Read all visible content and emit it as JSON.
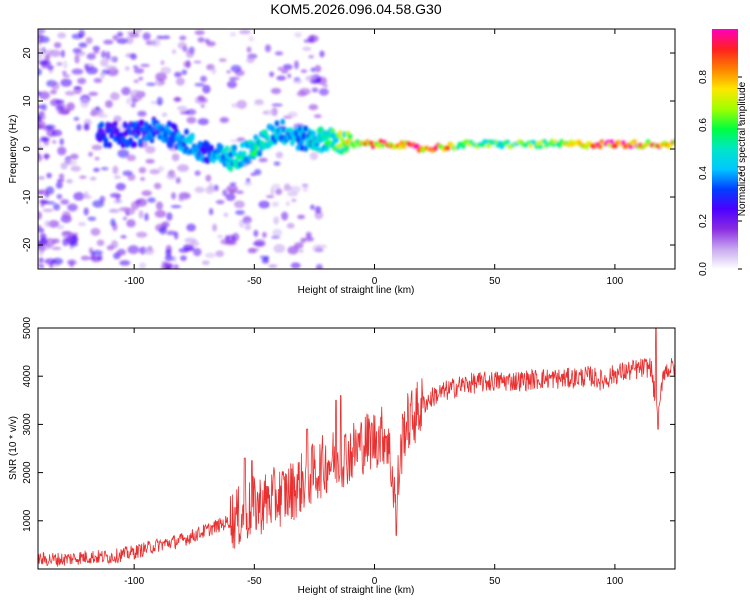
{
  "page_title": "KOM5.2026.096.04.58.G30",
  "chart_data": [
    {
      "type": "heatmap",
      "title": "KOM5.2026.096.04.58.G30",
      "xlabel": "Height of straight line (km)",
      "ylabel": "Frequency (Hz)",
      "xlim": [
        -140,
        125
      ],
      "ylim": [
        -25,
        25
      ],
      "x_ticks": [
        -100,
        -50,
        0,
        50,
        100
      ],
      "y_ticks": [
        -20,
        -10,
        0,
        10,
        20
      ],
      "x_tick_labels": [
        "-100",
        "-50",
        "0",
        "50",
        "100"
      ],
      "y_tick_labels": [
        "-20",
        "-10",
        "0",
        "10",
        "20"
      ],
      "colorbar": {
        "label": "Normalized spectral amplitude",
        "range": [
          0,
          1
        ],
        "ticks": [
          0.0,
          0.2,
          0.4,
          0.6,
          0.8
        ],
        "tick_labels": [
          "0.0",
          "0.2",
          "0.4",
          "0.6",
          "0.8"
        ],
        "colormap": [
          "#ffffff",
          "#c8a8f0",
          "#8a2be2",
          "#4b00ff",
          "#0040ff",
          "#00c8ff",
          "#00e6c8",
          "#00ff40",
          "#a0ff00",
          "#ffe600",
          "#ff8000",
          "#ff2020",
          "#ff00c0"
        ]
      },
      "ridge": {
        "description_points_x": [
          -100,
          -90,
          -80,
          -70,
          -60,
          -50,
          -40,
          -30,
          -20,
          -10,
          0,
          10,
          20,
          40,
          60,
          80,
          100,
          120
        ],
        "frequency_hz": [
          3,
          4,
          2,
          -1,
          -2,
          0,
          4,
          2,
          2,
          1,
          1,
          1,
          0,
          1,
          1,
          1,
          1,
          1
        ],
        "amplitude": [
          0.3,
          0.35,
          0.4,
          0.35,
          0.45,
          0.5,
          0.4,
          0.4,
          0.5,
          0.7,
          0.8,
          0.85,
          0.9,
          0.6,
          0.6,
          0.7,
          0.9,
          0.8
        ]
      }
    },
    {
      "type": "line",
      "xlabel": "Height of straight line (km)",
      "ylabel": "SNR (10 * v/v)",
      "xlim": [
        -140,
        125
      ],
      "ylim": [
        0,
        5000
      ],
      "x_ticks": [
        -100,
        -50,
        0,
        50,
        100
      ],
      "y_ticks": [
        1000,
        2000,
        3000,
        4000,
        5000
      ],
      "x_tick_labels": [
        "-100",
        "-50",
        "0",
        "50",
        "100"
      ],
      "y_tick_labels": [
        "1000",
        "2000",
        "3000",
        "4000",
        "5000"
      ],
      "color": "#e83030",
      "x": [
        -140,
        -130,
        -120,
        -110,
        -100,
        -90,
        -80,
        -70,
        -60,
        -55,
        -50,
        -45,
        -40,
        -35,
        -30,
        -25,
        -20,
        -15,
        -10,
        -5,
        0,
        5,
        9,
        12,
        15,
        20,
        25,
        30,
        35,
        40,
        50,
        60,
        70,
        80,
        90,
        95,
        100,
        105,
        110,
        115,
        118,
        120,
        125
      ],
      "values": [
        200,
        200,
        250,
        250,
        350,
        500,
        600,
        800,
        1000,
        1100,
        1300,
        1400,
        1500,
        1600,
        1800,
        2000,
        2200,
        2300,
        2400,
        2600,
        2700,
        2800,
        1400,
        2900,
        3100,
        3400,
        3600,
        3700,
        3800,
        3850,
        3900,
        3900,
        3950,
        3950,
        4000,
        3900,
        4050,
        4100,
        4150,
        4200,
        3000,
        4100,
        4200
      ],
      "spikes": [
        {
          "x": -54,
          "y": 2300
        },
        {
          "x": -51,
          "y": 2250
        },
        {
          "x": -28,
          "y": 2900
        },
        {
          "x": -16,
          "y": 3500
        },
        {
          "x": -14,
          "y": 3600
        },
        {
          "x": 9,
          "y": 700
        },
        {
          "x": 117,
          "y": 5050
        },
        {
          "x": 118,
          "y": 2900
        }
      ]
    }
  ]
}
